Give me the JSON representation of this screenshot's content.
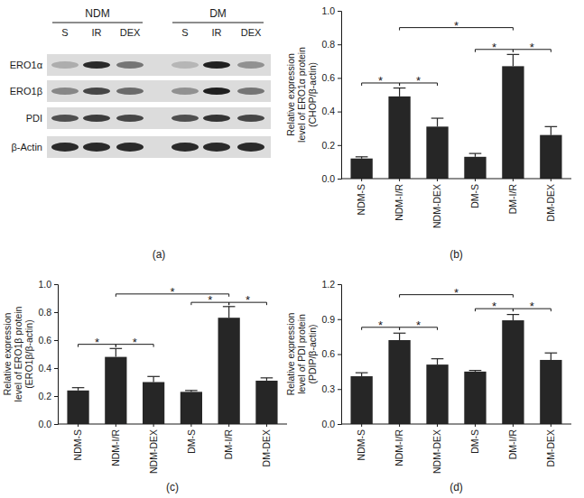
{
  "blot": {
    "panel_label": "(a)",
    "groups": [
      "NDM",
      "DM"
    ],
    "lanes": [
      "S",
      "IR",
      "DEX",
      "S",
      "IR",
      "DEX"
    ],
    "rows": [
      "ERO1α",
      "ERO1β",
      "PDI",
      "β-Actin"
    ]
  },
  "chart_data": [
    {
      "type": "bar",
      "panel_label": "(b)",
      "y_label": [
        "Relative expression",
        "level of ERO1α protein",
        "(CHOP/β-actin)"
      ],
      "categories": [
        "NDM-S",
        "NDM-I/R",
        "NDM-DEX",
        "DM-S",
        "DM-I/R",
        "DM-DEX"
      ],
      "values": [
        0.12,
        0.49,
        0.31,
        0.13,
        0.67,
        0.26
      ],
      "errors": [
        0.01,
        0.05,
        0.05,
        0.02,
        0.07,
        0.05
      ],
      "color": "#262626",
      "ylim": [
        0,
        1.0
      ],
      "yticks": [
        {
          "value": 0,
          "label": "0.0"
        },
        {
          "value": 0.2,
          "label": "0.2"
        },
        {
          "value": 0.4,
          "label": "0.4"
        },
        {
          "value": 0.6,
          "label": "0.6"
        },
        {
          "value": 0.8,
          "label": "0.8"
        },
        {
          "value": 1.0,
          "label": "1.0"
        }
      ],
      "significance": [
        {
          "from": 0,
          "to": 1,
          "y": 0.57,
          "label": "*"
        },
        {
          "from": 1,
          "to": 2,
          "y": 0.57,
          "label": "*"
        },
        {
          "from": 1,
          "to": 4,
          "y": 0.9,
          "label": "*"
        },
        {
          "from": 3,
          "to": 4,
          "y": 0.77,
          "label": "*"
        },
        {
          "from": 4,
          "to": 5,
          "y": 0.77,
          "label": "*"
        }
      ]
    },
    {
      "type": "bar",
      "panel_label": "(c)",
      "y_label": [
        "Relative expression",
        "level of ERO1β protein",
        "(ERO1β/β-actin)"
      ],
      "categories": [
        "NDM-S",
        "NDM-I/R",
        "NDM-DEX",
        "DM-S",
        "DM-I/R",
        "DM-DEX"
      ],
      "values": [
        0.24,
        0.48,
        0.3,
        0.23,
        0.76,
        0.31
      ],
      "errors": [
        0.02,
        0.06,
        0.04,
        0.01,
        0.08,
        0.02
      ],
      "color": "#262626",
      "ylim": [
        0,
        1.0
      ],
      "yticks": [
        {
          "value": 0,
          "label": "0.0"
        },
        {
          "value": 0.2,
          "label": "0.2"
        },
        {
          "value": 0.4,
          "label": "0.4"
        },
        {
          "value": 0.6,
          "label": "0.6"
        },
        {
          "value": 0.8,
          "label": "0.8"
        },
        {
          "value": 1.0,
          "label": "1.0"
        }
      ],
      "significance": [
        {
          "from": 0,
          "to": 1,
          "y": 0.57,
          "label": "*"
        },
        {
          "from": 1,
          "to": 2,
          "y": 0.57,
          "label": "*"
        },
        {
          "from": 1,
          "to": 4,
          "y": 0.93,
          "label": "*"
        },
        {
          "from": 3,
          "to": 4,
          "y": 0.87,
          "label": "*"
        },
        {
          "from": 4,
          "to": 5,
          "y": 0.87,
          "label": "*"
        }
      ]
    },
    {
      "type": "bar",
      "panel_label": "(d)",
      "y_label": [
        "Relative expression",
        "level of PDI protein",
        "(PDIP/β-actin)"
      ],
      "categories": [
        "NDM-S",
        "NDM-I/R",
        "NDM-DEX",
        "DM-S",
        "DM-I/R",
        "DM-DEX"
      ],
      "values": [
        0.41,
        0.72,
        0.51,
        0.45,
        0.89,
        0.55
      ],
      "errors": [
        0.03,
        0.06,
        0.05,
        0.01,
        0.05,
        0.06
      ],
      "color": "#262626",
      "ylim": [
        0,
        1.2
      ],
      "yticks": [
        {
          "value": 0,
          "label": "0.0"
        },
        {
          "value": 0.3,
          "label": "0.3"
        },
        {
          "value": 0.6,
          "label": "0.6"
        },
        {
          "value": 0.9,
          "label": "0.9"
        },
        {
          "value": 1.2,
          "label": "1.2"
        }
      ],
      "significance": [
        {
          "from": 0,
          "to": 1,
          "y": 0.83,
          "label": "*"
        },
        {
          "from": 1,
          "to": 2,
          "y": 0.83,
          "label": "*"
        },
        {
          "from": 1,
          "to": 4,
          "y": 1.11,
          "label": "*"
        },
        {
          "from": 3,
          "to": 4,
          "y": 0.99,
          "label": "*"
        },
        {
          "from": 4,
          "to": 5,
          "y": 0.99,
          "label": "*"
        }
      ]
    }
  ]
}
